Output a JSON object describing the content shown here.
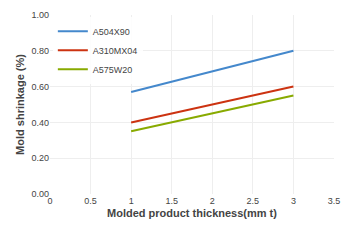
{
  "chart_data": {
    "type": "line",
    "xlabel": "Molded product thickness(mm t)",
    "ylabel": "Mold shrinkage (%)",
    "xlim": [
      0,
      3.5
    ],
    "ylim": [
      0.0,
      1.0
    ],
    "xticks": [
      0,
      0.5,
      1.0,
      1.5,
      2.0,
      2.5,
      3.0,
      3.5
    ],
    "yticks": [
      {
        "value": 0.0,
        "label": "0.00"
      },
      {
        "value": 0.2,
        "label": "0.20"
      },
      {
        "value": 0.4,
        "label": "0.40"
      },
      {
        "value": 0.6,
        "label": "0.60"
      },
      {
        "value": 0.8,
        "label": "0.80"
      },
      {
        "value": 1.0,
        "label": "1.00"
      }
    ],
    "grid": true,
    "legend": "upper left",
    "series": [
      {
        "name": "A504X90",
        "color": "#4488cc",
        "x": [
          1.0,
          3.0
        ],
        "values": [
          0.57,
          0.8
        ]
      },
      {
        "name": "A310MX04",
        "color": "#cc3311",
        "x": [
          1.0,
          3.0
        ],
        "values": [
          0.4,
          0.6
        ]
      },
      {
        "name": "A575W20",
        "color": "#88aa00",
        "x": [
          1.0,
          3.0
        ],
        "values": [
          0.35,
          0.55
        ]
      }
    ]
  }
}
